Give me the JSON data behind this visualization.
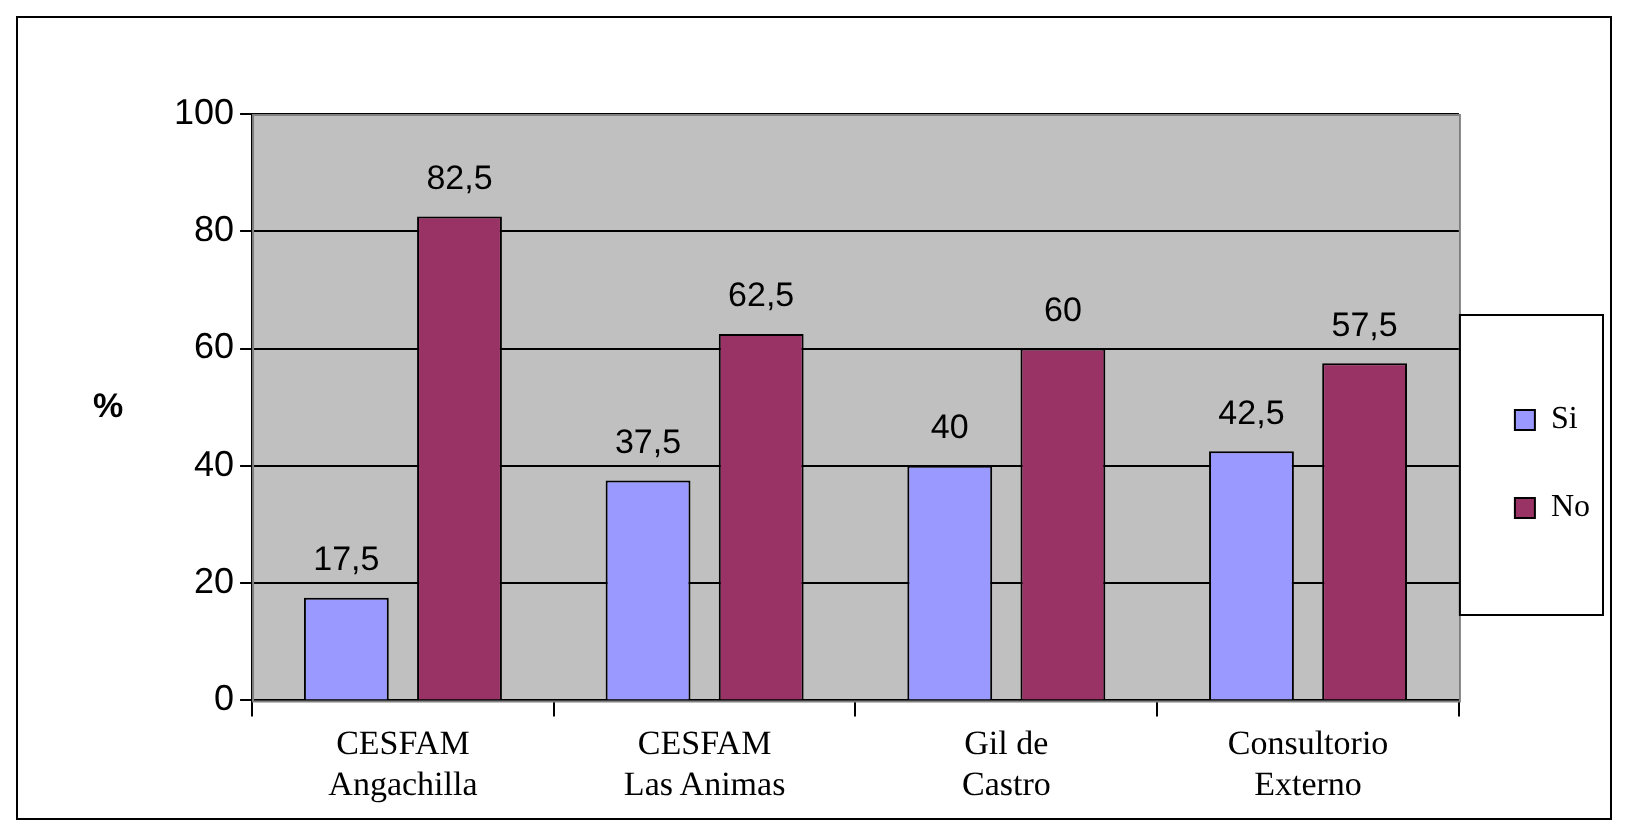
{
  "chart_data": {
    "type": "bar",
    "ylabel": "%",
    "categories": [
      "CESFAM Angachilla",
      "CESFAM Las Animas",
      "Gil de Castro",
      "Consultorio Externo"
    ],
    "series": [
      {
        "name": "Si",
        "color": "#9999ff",
        "values": [
          17.5,
          37.5,
          40,
          42.5
        ],
        "value_labels": [
          "17,5",
          "37,5",
          "40",
          "42,5"
        ]
      },
      {
        "name": "No",
        "color": "#993366",
        "values": [
          82.5,
          62.5,
          60,
          57.5
        ],
        "value_labels": [
          "82,5",
          "62,5",
          "60",
          "57,5"
        ]
      }
    ],
    "ylim": [
      0,
      100
    ],
    "yticks": [
      0,
      20,
      40,
      60,
      80,
      100
    ],
    "grid": "y",
    "legend": "right"
  }
}
